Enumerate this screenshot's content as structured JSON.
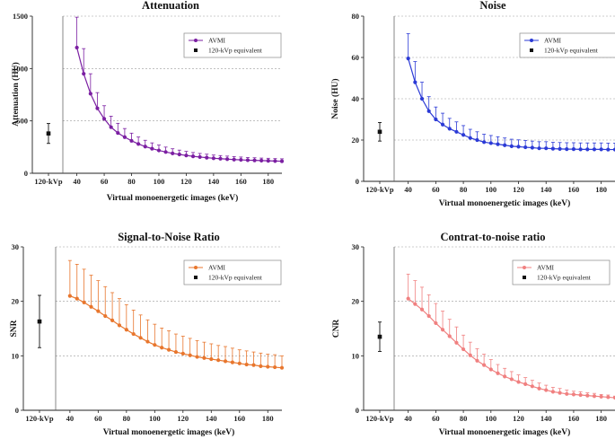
{
  "chart_data": [
    {
      "type": "line",
      "title": "Attenuation",
      "xlabel": "Virtual monoenergetic images (keV)",
      "ylabel": "Attenuation (HU)",
      "ylim": [
        0,
        1500
      ],
      "yticks": [
        0,
        500,
        1000,
        1500
      ],
      "xlim": [
        35,
        190
      ],
      "xticks": [
        40,
        60,
        80,
        100,
        120,
        140,
        160,
        180
      ],
      "ref_label": "120-kVp",
      "grid": true,
      "legend_position": "top-right",
      "color": "#7b1fa2",
      "series": [
        {
          "name": "AVMI",
          "x": [
            40,
            45,
            50,
            55,
            60,
            65,
            70,
            75,
            80,
            85,
            90,
            95,
            100,
            105,
            110,
            115,
            120,
            125,
            130,
            135,
            140,
            145,
            150,
            155,
            160,
            165,
            170,
            175,
            180,
            185,
            190
          ],
          "values": [
            1200,
            950,
            760,
            620,
            520,
            440,
            385,
            345,
            310,
            280,
            255,
            235,
            218,
            203,
            190,
            180,
            170,
            162,
            155,
            149,
            143,
            139,
            135,
            131,
            128,
            125,
            123,
            121,
            119,
            117,
            115
          ],
          "errors": [
            290,
            240,
            190,
            150,
            125,
            105,
            92,
            82,
            73,
            66,
            60,
            55,
            51,
            47,
            44,
            41,
            39,
            36,
            34,
            33,
            31,
            30,
            29,
            28,
            27,
            26,
            25,
            24,
            24,
            23,
            23
          ]
        },
        {
          "name": "120-kVp equivalent",
          "value": 380,
          "error": 95
        }
      ]
    },
    {
      "type": "line",
      "title": "Noise",
      "xlabel": "Virtual monoenergetic images (keV)",
      "ylabel": "Noise (HU)",
      "ylim": [
        0,
        80
      ],
      "yticks": [
        0,
        20,
        40,
        60,
        80
      ],
      "xlim": [
        35,
        190
      ],
      "xticks": [
        40,
        60,
        80,
        100,
        120,
        140,
        160,
        180
      ],
      "ref_label": "120-kVp",
      "grid": true,
      "legend_position": "top-right",
      "color": "#2b3ad6",
      "series": [
        {
          "name": "AVMI",
          "x": [
            40,
            45,
            50,
            55,
            60,
            65,
            70,
            75,
            80,
            85,
            90,
            95,
            100,
            105,
            110,
            115,
            120,
            125,
            130,
            135,
            140,
            145,
            150,
            155,
            160,
            165,
            170,
            175,
            180,
            185,
            190
          ],
          "values": [
            59.5,
            48,
            40,
            34,
            30,
            27.5,
            25.5,
            24,
            22.5,
            21,
            20,
            19,
            18.5,
            18,
            17.5,
            17,
            16.8,
            16.5,
            16.3,
            16,
            16,
            15.8,
            15.7,
            15.6,
            15.6,
            15.5,
            15.5,
            15.5,
            15.5,
            15.4,
            15.4
          ],
          "errors": [
            12,
            10,
            8,
            7,
            6,
            5.5,
            5,
            4.8,
            4.5,
            4.2,
            4,
            3.8,
            3.7,
            3.6,
            3.5,
            3.4,
            3.3,
            3.3,
            3.2,
            3.2,
            3.2,
            3.1,
            3.1,
            3.1,
            3.1,
            3.1,
            3.1,
            3.1,
            3.1,
            3.1,
            3.1
          ]
        },
        {
          "name": "120-kVp equivalent",
          "value": 24,
          "error": 4.5
        }
      ]
    },
    {
      "type": "line",
      "title": "Signal-to-Noise Ratio",
      "xlabel": "Virtual monoenergetic images (keV)",
      "ylabel": "SNR",
      "ylim": [
        0,
        30
      ],
      "yticks": [
        0,
        10,
        20,
        30
      ],
      "xlim": [
        35,
        190
      ],
      "xticks": [
        40,
        60,
        80,
        100,
        120,
        140,
        160,
        180
      ],
      "ref_label": "120-kVp",
      "grid": true,
      "legend_position": "top-right",
      "color": "#e8762d",
      "series": [
        {
          "name": "AVMI",
          "x": [
            40,
            45,
            50,
            55,
            60,
            65,
            70,
            75,
            80,
            85,
            90,
            95,
            100,
            105,
            110,
            115,
            120,
            125,
            130,
            135,
            140,
            145,
            150,
            155,
            160,
            165,
            170,
            175,
            180,
            185,
            190
          ],
          "values": [
            21,
            20.5,
            19.8,
            19,
            18.2,
            17.3,
            16.5,
            15.6,
            14.8,
            14,
            13.3,
            12.6,
            12,
            11.5,
            11.1,
            10.7,
            10.4,
            10.1,
            9.8,
            9.6,
            9.4,
            9.2,
            9,
            8.8,
            8.6,
            8.4,
            8.3,
            8.1,
            8,
            7.9,
            7.8
          ],
          "errors": [
            6.5,
            6.3,
            6.1,
            5.8,
            5.6,
            5.4,
            5.1,
            4.9,
            4.6,
            4.4,
            4.2,
            4,
            3.8,
            3.6,
            3.5,
            3.3,
            3.2,
            3.1,
            3,
            2.9,
            2.8,
            2.7,
            2.7,
            2.6,
            2.5,
            2.5,
            2.4,
            2.4,
            2.3,
            2.3,
            2.2
          ]
        },
        {
          "name": "120-kVp equivalent",
          "value": 16.3,
          "error": 4.8
        }
      ]
    },
    {
      "type": "line",
      "title": "Contrat-to-noise ratio",
      "xlabel": "Virtual monoenergetic images (keV)",
      "ylabel": "CNR",
      "ylim": [
        0,
        30
      ],
      "yticks": [
        0,
        10,
        20,
        30
      ],
      "xlim": [
        35,
        190
      ],
      "xticks": [
        40,
        60,
        80,
        100,
        120,
        140,
        160,
        180
      ],
      "ref_label": "120-kVp",
      "grid": true,
      "legend_position": "top-right",
      "color": "#f08080",
      "series": [
        {
          "name": "AVMI",
          "x": [
            40,
            45,
            50,
            55,
            60,
            65,
            70,
            75,
            80,
            85,
            90,
            95,
            100,
            105,
            110,
            115,
            120,
            125,
            130,
            135,
            140,
            145,
            150,
            155,
            160,
            165,
            170,
            175,
            180,
            185,
            190
          ],
          "values": [
            20.5,
            19.5,
            18.5,
            17.3,
            16,
            14.8,
            13.6,
            12.4,
            11.2,
            10.1,
            9.1,
            8.3,
            7.5,
            6.8,
            6.2,
            5.7,
            5.2,
            4.8,
            4.4,
            4,
            3.7,
            3.4,
            3.2,
            3,
            2.9,
            2.8,
            2.7,
            2.6,
            2.5,
            2.4,
            2.3
          ],
          "errors": [
            4.5,
            4.3,
            4.1,
            3.9,
            3.6,
            3.4,
            3.1,
            2.9,
            2.6,
            2.4,
            2.2,
            2,
            1.8,
            1.6,
            1.5,
            1.4,
            1.3,
            1.2,
            1.1,
            1,
            0.9,
            0.8,
            0.8,
            0.7,
            0.6,
            0.6,
            0.5,
            0.5,
            0.4,
            0.4,
            0.3
          ]
        },
        {
          "name": "120-kVp equivalent",
          "value": 13.5,
          "error": 2.7
        }
      ]
    }
  ]
}
